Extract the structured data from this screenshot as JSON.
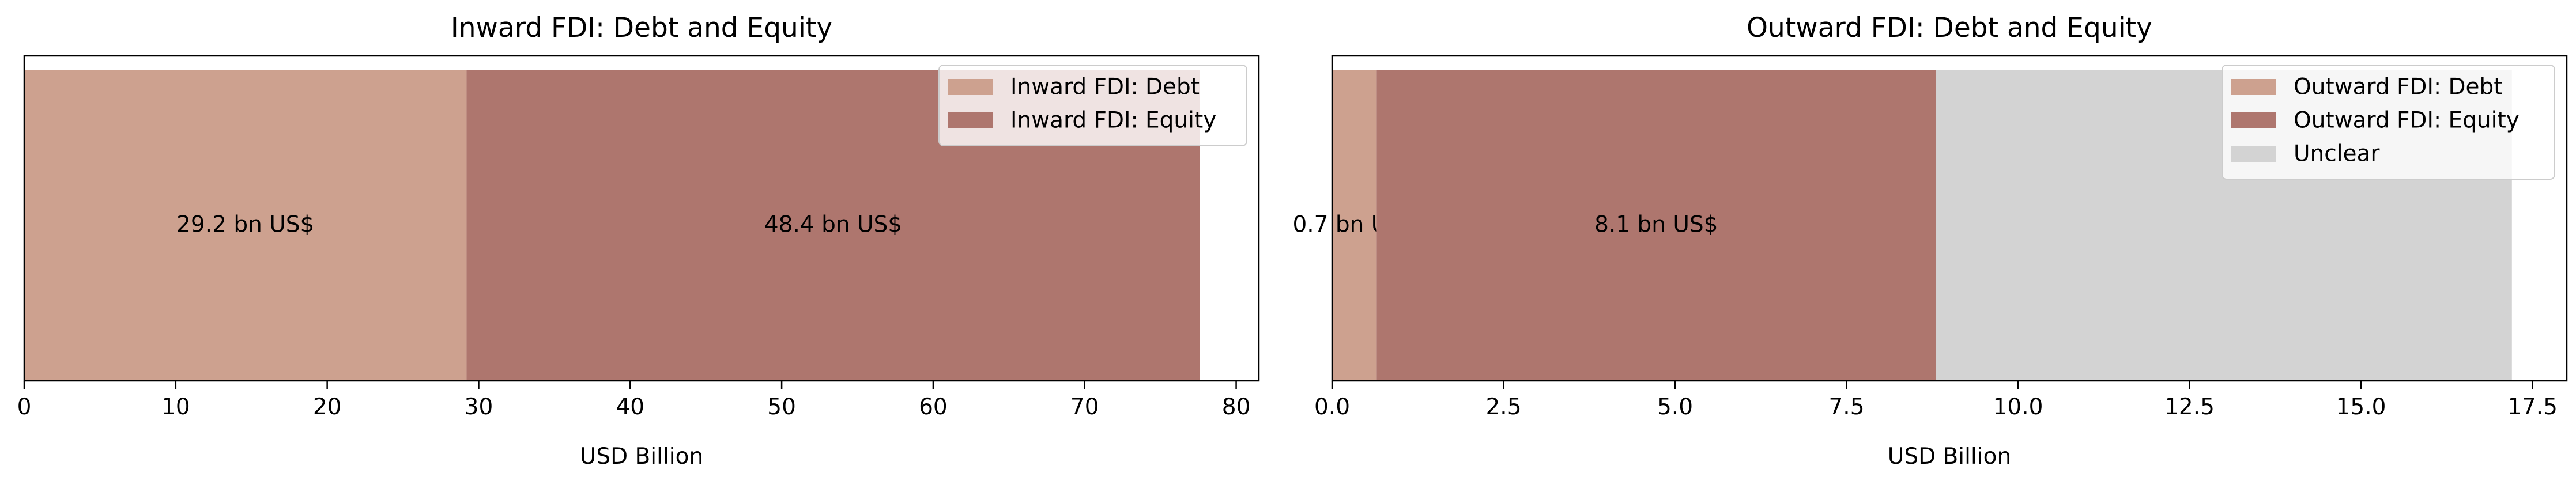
{
  "chart_data": [
    {
      "type": "bar",
      "orientation": "horizontal",
      "stacked": true,
      "title": "Inward FDI: Debt and Equity",
      "xlabel": "USD Billion",
      "ylabel": "",
      "xlim": [
        0,
        81.5
      ],
      "xticks": [
        0,
        10,
        20,
        30,
        40,
        50,
        60,
        70,
        80
      ],
      "xtick_labels": [
        "0",
        "10",
        "20",
        "30",
        "40",
        "50",
        "60",
        "70",
        "80"
      ],
      "grid": false,
      "legend_position": "top-right",
      "series": [
        {
          "name": "Inward FDI: Debt",
          "value": 29.2,
          "label": "29.2 bn US$",
          "color": "#cda18f"
        },
        {
          "name": "Inward FDI: Equity",
          "value": 48.4,
          "label": "48.4 bn US$",
          "color": "#ae766e"
        }
      ]
    },
    {
      "type": "bar",
      "orientation": "horizontal",
      "stacked": true,
      "title": "Outward FDI: Debt and Equity",
      "xlabel": "USD Billion",
      "ylabel": "",
      "xlim": [
        0,
        18
      ],
      "xticks": [
        0,
        2.5,
        5,
        7.5,
        10,
        12.5,
        15,
        17.5
      ],
      "xtick_labels": [
        "0.0",
        "2.5",
        "5.0",
        "7.5",
        "10.0",
        "12.5",
        "15.0",
        "17.5"
      ],
      "grid": false,
      "legend_position": "top-right",
      "series": [
        {
          "name": "Outward FDI: Debt",
          "value": 0.65,
          "label": "0.7 bn US$",
          "color": "#cda18f"
        },
        {
          "name": "Outward FDI: Equity",
          "value": 8.15,
          "label": "8.1 bn US$",
          "color": "#ae766e"
        },
        {
          "name": "Unclear",
          "value": 8.4,
          "label": "",
          "color": "#d3d3d3"
        }
      ]
    }
  ]
}
